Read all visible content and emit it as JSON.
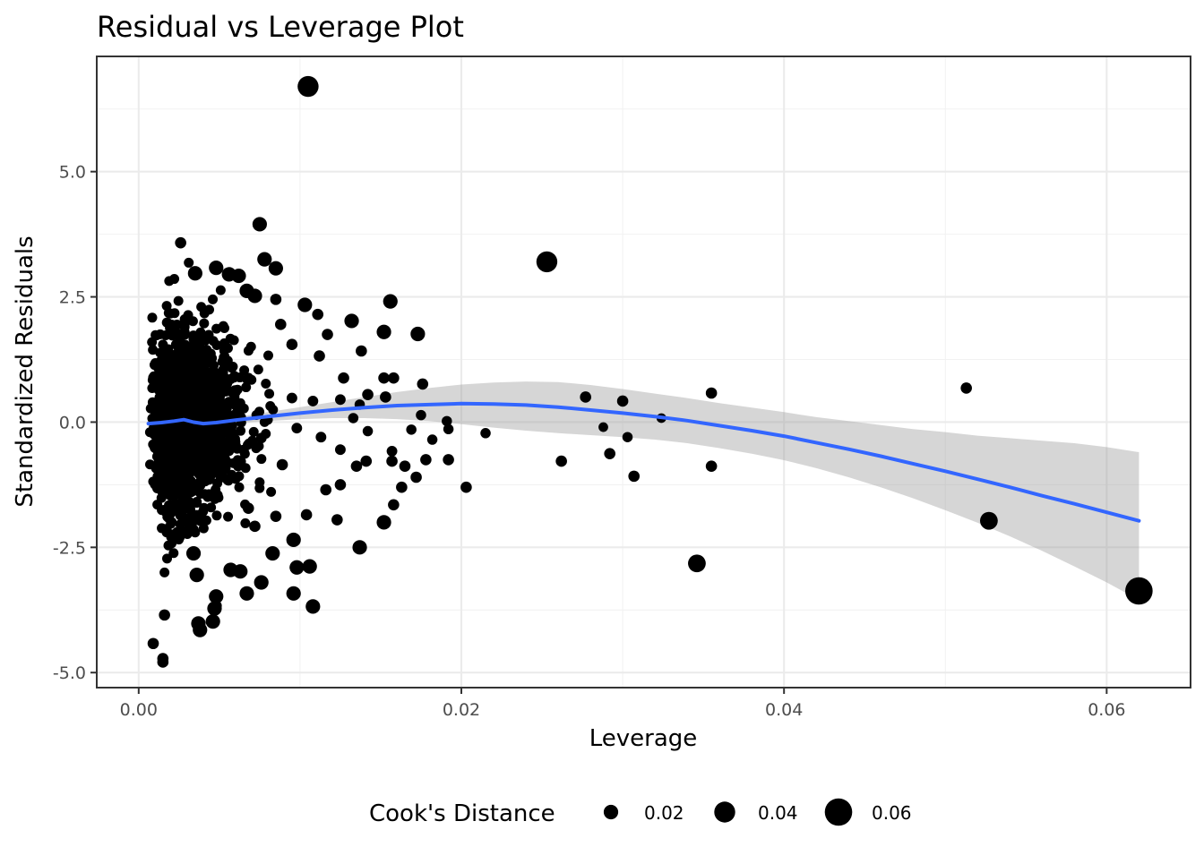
{
  "chart_data": {
    "type": "scatter",
    "title": "Residual vs Leverage Plot",
    "xlabel": "Leverage",
    "ylabel": "Standardized Residuals",
    "xlim": [
      -0.0026,
      0.0652
    ],
    "ylim": [
      -5.3,
      7.3
    ],
    "x_ticks": [
      0.0,
      0.02,
      0.04,
      0.06
    ],
    "x_tick_labels": [
      "0.00",
      "0.02",
      "0.04",
      "0.06"
    ],
    "y_ticks": [
      -5.0,
      -2.5,
      0.0,
      2.5,
      5.0
    ],
    "y_tick_labels": [
      "-5.0",
      "-2.5",
      "0.0",
      "2.5",
      "5.0"
    ],
    "grid": true,
    "legend": {
      "title": "Cook's Distance",
      "position": "bottom",
      "entries": [
        {
          "label": "0.02",
          "value": 0.02
        },
        {
          "label": "0.04",
          "value": 0.04
        },
        {
          "label": "0.06",
          "value": 0.06
        }
      ]
    },
    "points_color": "#000000",
    "smooth_color": "#3366FF",
    "band_color": "#999999",
    "points": [
      {
        "x": 0.0105,
        "y": 6.7,
        "cook": 0.04
      },
      {
        "x": 0.0075,
        "y": 3.95,
        "cook": 0.02
      },
      {
        "x": 0.0026,
        "y": 3.58,
        "cook": 0.01
      },
      {
        "x": 0.0253,
        "y": 3.2,
        "cook": 0.04
      },
      {
        "x": 0.0078,
        "y": 3.25,
        "cook": 0.02
      },
      {
        "x": 0.0085,
        "y": 3.07,
        "cook": 0.02
      },
      {
        "x": 0.0048,
        "y": 3.08,
        "cook": 0.02
      },
      {
        "x": 0.0056,
        "y": 2.95,
        "cook": 0.02
      },
      {
        "x": 0.0035,
        "y": 2.97,
        "cook": 0.02
      },
      {
        "x": 0.0156,
        "y": 2.41,
        "cook": 0.02
      },
      {
        "x": 0.0103,
        "y": 2.34,
        "cook": 0.02
      },
      {
        "x": 0.0111,
        "y": 2.15,
        "cook": 0.01
      },
      {
        "x": 0.0132,
        "y": 2.02,
        "cook": 0.02
      },
      {
        "x": 0.0152,
        "y": 1.8,
        "cook": 0.02
      },
      {
        "x": 0.0173,
        "y": 1.76,
        "cook": 0.02
      },
      {
        "x": 0.0117,
        "y": 1.75,
        "cook": 0.01
      },
      {
        "x": 0.0138,
        "y": 1.42,
        "cook": 0.01
      },
      {
        "x": 0.0112,
        "y": 1.32,
        "cook": 0.01
      },
      {
        "x": 0.0095,
        "y": 1.55,
        "cook": 0.01
      },
      {
        "x": 0.0088,
        "y": 1.95,
        "cook": 0.01
      },
      {
        "x": 0.0127,
        "y": 0.88,
        "cook": 0.01
      },
      {
        "x": 0.0152,
        "y": 0.88,
        "cook": 0.01
      },
      {
        "x": 0.0158,
        "y": 0.88,
        "cook": 0.01
      },
      {
        "x": 0.0176,
        "y": 0.76,
        "cook": 0.01
      },
      {
        "x": 0.0142,
        "y": 0.55,
        "cook": 0.01
      },
      {
        "x": 0.0153,
        "y": 0.5,
        "cook": 0.01
      },
      {
        "x": 0.0125,
        "y": 0.45,
        "cook": 0.008
      },
      {
        "x": 0.0108,
        "y": 0.42,
        "cook": 0.008
      },
      {
        "x": 0.0095,
        "y": 0.48,
        "cook": 0.008
      },
      {
        "x": 0.0133,
        "y": 0.08,
        "cook": 0.007
      },
      {
        "x": 0.0137,
        "y": 0.35,
        "cook": 0.007
      },
      {
        "x": 0.0175,
        "y": 0.14,
        "cook": 0.007
      },
      {
        "x": 0.0191,
        "y": 0.02,
        "cook": 0.007
      },
      {
        "x": 0.0192,
        "y": -0.14,
        "cook": 0.007
      },
      {
        "x": 0.0215,
        "y": -0.22,
        "cook": 0.007
      },
      {
        "x": 0.0182,
        "y": -0.35,
        "cook": 0.007
      },
      {
        "x": 0.0169,
        "y": -0.15,
        "cook": 0.007
      },
      {
        "x": 0.0142,
        "y": -0.18,
        "cook": 0.007
      },
      {
        "x": 0.0113,
        "y": -0.3,
        "cook": 0.008
      },
      {
        "x": 0.0125,
        "y": -0.55,
        "cook": 0.008
      },
      {
        "x": 0.0157,
        "y": -0.58,
        "cook": 0.008
      },
      {
        "x": 0.0157,
        "y": -0.78,
        "cook": 0.01
      },
      {
        "x": 0.0165,
        "y": -0.88,
        "cook": 0.01
      },
      {
        "x": 0.0178,
        "y": -0.75,
        "cook": 0.01
      },
      {
        "x": 0.0192,
        "y": -0.75,
        "cook": 0.01
      },
      {
        "x": 0.0172,
        "y": -1.1,
        "cook": 0.01
      },
      {
        "x": 0.0163,
        "y": -1.3,
        "cook": 0.01
      },
      {
        "x": 0.0141,
        "y": -0.78,
        "cook": 0.01
      },
      {
        "x": 0.0135,
        "y": -0.88,
        "cook": 0.01
      },
      {
        "x": 0.0125,
        "y": -1.25,
        "cook": 0.01
      },
      {
        "x": 0.0116,
        "y": -1.35,
        "cook": 0.01
      },
      {
        "x": 0.0104,
        "y": -1.85,
        "cook": 0.01
      },
      {
        "x": 0.0123,
        "y": -1.95,
        "cook": 0.01
      },
      {
        "x": 0.0158,
        "y": -1.65,
        "cook": 0.01
      },
      {
        "x": 0.0152,
        "y": -2.0,
        "cook": 0.02
      },
      {
        "x": 0.0137,
        "y": -2.5,
        "cook": 0.02
      },
      {
        "x": 0.0096,
        "y": -2.35,
        "cook": 0.02
      },
      {
        "x": 0.0098,
        "y": -2.9,
        "cook": 0.02
      },
      {
        "x": 0.0106,
        "y": -2.88,
        "cook": 0.02
      },
      {
        "x": 0.0096,
        "y": -3.42,
        "cook": 0.02
      },
      {
        "x": 0.0108,
        "y": -3.68,
        "cook": 0.02
      },
      {
        "x": 0.0076,
        "y": -3.2,
        "cook": 0.02
      },
      {
        "x": 0.0067,
        "y": -3.42,
        "cook": 0.02
      },
      {
        "x": 0.0083,
        "y": -2.62,
        "cook": 0.02
      },
      {
        "x": 0.0203,
        "y": -1.3,
        "cook": 0.01
      },
      {
        "x": 0.0262,
        "y": -0.78,
        "cook": 0.01
      },
      {
        "x": 0.0277,
        "y": 0.5,
        "cook": 0.01
      },
      {
        "x": 0.0288,
        "y": -0.1,
        "cook": 0.005
      },
      {
        "x": 0.0292,
        "y": -0.63,
        "cook": 0.01
      },
      {
        "x": 0.03,
        "y": 0.42,
        "cook": 0.01
      },
      {
        "x": 0.0303,
        "y": -0.3,
        "cook": 0.007
      },
      {
        "x": 0.0307,
        "y": -1.08,
        "cook": 0.01
      },
      {
        "x": 0.0324,
        "y": 0.08,
        "cook": 0.005
      },
      {
        "x": 0.0346,
        "y": -2.82,
        "cook": 0.03
      },
      {
        "x": 0.0355,
        "y": 0.58,
        "cook": 0.01
      },
      {
        "x": 0.0355,
        "y": -0.88,
        "cook": 0.01
      },
      {
        "x": 0.0513,
        "y": 0.68,
        "cook": 0.01
      },
      {
        "x": 0.0527,
        "y": -1.97,
        "cook": 0.03
      },
      {
        "x": 0.062,
        "y": -3.37,
        "cook": 0.06
      },
      {
        "x": 0.0009,
        "y": -4.42,
        "cook": 0.01
      },
      {
        "x": 0.0015,
        "y": -4.72,
        "cook": 0.01
      },
      {
        "x": 0.0015,
        "y": -4.79,
        "cook": 0.01
      },
      {
        "x": 0.0037,
        "y": -4.02,
        "cook": 0.02
      },
      {
        "x": 0.0038,
        "y": -4.15,
        "cook": 0.02
      },
      {
        "x": 0.0046,
        "y": -3.98,
        "cook": 0.02
      },
      {
        "x": 0.0047,
        "y": -3.72,
        "cook": 0.02
      },
      {
        "x": 0.0016,
        "y": -3.85,
        "cook": 0.01
      },
      {
        "x": 0.0048,
        "y": -3.48,
        "cook": 0.02
      },
      {
        "x": 0.0036,
        "y": -3.05,
        "cook": 0.02
      },
      {
        "x": 0.0057,
        "y": -2.95,
        "cook": 0.02
      },
      {
        "x": 0.0063,
        "y": -2.98,
        "cook": 0.02
      },
      {
        "x": 0.0034,
        "y": -2.62,
        "cook": 0.02
      },
      {
        "x": 0.0062,
        "y": 2.92,
        "cook": 0.02
      },
      {
        "x": 0.0067,
        "y": 2.62,
        "cook": 0.02
      },
      {
        "x": 0.0072,
        "y": 2.52,
        "cook": 0.02
      },
      {
        "x": 0.0085,
        "y": 2.45,
        "cook": 0.01
      },
      {
        "x": 0.0068,
        "y": -1.72,
        "cook": 0.01
      },
      {
        "x": 0.0072,
        "y": -2.08,
        "cook": 0.01
      },
      {
        "x": 0.0085,
        "y": -1.88,
        "cook": 0.01
      },
      {
        "x": 0.0089,
        "y": -0.85,
        "cook": 0.01
      },
      {
        "x": 0.0076,
        "y": -0.32,
        "cook": 0.008
      },
      {
        "x": 0.0098,
        "y": -0.12,
        "cook": 0.008
      }
    ],
    "smooth": {
      "x": [
        0.0006,
        0.0014,
        0.0022,
        0.0028,
        0.0034,
        0.004,
        0.0048,
        0.006,
        0.008,
        0.01,
        0.012,
        0.014,
        0.016,
        0.018,
        0.02,
        0.022,
        0.024,
        0.026,
        0.028,
        0.03,
        0.032,
        0.034,
        0.036,
        0.038,
        0.04,
        0.042,
        0.044,
        0.046,
        0.048,
        0.05,
        0.052,
        0.054,
        0.056,
        0.058,
        0.06,
        0.062
      ],
      "y": [
        -0.03,
        -0.01,
        0.02,
        0.05,
        0.0,
        -0.03,
        -0.01,
        0.04,
        0.11,
        0.18,
        0.24,
        0.29,
        0.33,
        0.35,
        0.37,
        0.36,
        0.34,
        0.3,
        0.24,
        0.18,
        0.11,
        0.03,
        -0.07,
        -0.17,
        -0.28,
        -0.41,
        -0.54,
        -0.68,
        -0.83,
        -0.98,
        -1.14,
        -1.3,
        -1.47,
        -1.63,
        -1.8,
        -1.97
      ],
      "lower": [
        -0.1,
        -0.07,
        -0.03,
        0.0,
        -0.05,
        -0.08,
        -0.06,
        -0.02,
        0.02,
        0.06,
        0.08,
        0.08,
        0.06,
        0.02,
        -0.04,
        -0.11,
        -0.17,
        -0.22,
        -0.26,
        -0.3,
        -0.35,
        -0.42,
        -0.52,
        -0.63,
        -0.76,
        -0.92,
        -1.1,
        -1.3,
        -1.52,
        -1.76,
        -2.01,
        -2.28,
        -2.57,
        -2.88,
        -3.2,
        -3.55
      ],
      "upper": [
        0.04,
        0.05,
        0.07,
        0.1,
        0.05,
        0.02,
        0.04,
        0.1,
        0.2,
        0.3,
        0.4,
        0.5,
        0.6,
        0.68,
        0.75,
        0.79,
        0.81,
        0.8,
        0.74,
        0.66,
        0.57,
        0.48,
        0.38,
        0.29,
        0.2,
        0.1,
        0.02,
        -0.06,
        -0.14,
        -0.2,
        -0.27,
        -0.32,
        -0.37,
        -0.42,
        -0.5,
        -0.6
      ]
    }
  }
}
